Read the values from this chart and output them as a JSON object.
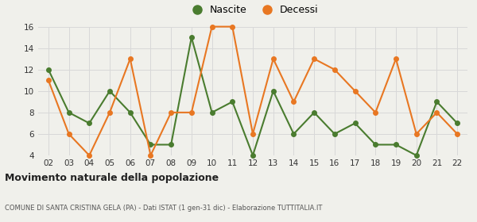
{
  "years": [
    2,
    3,
    4,
    5,
    6,
    7,
    8,
    9,
    10,
    11,
    12,
    13,
    14,
    15,
    16,
    17,
    18,
    19,
    20,
    21,
    22
  ],
  "nascite": [
    12,
    8,
    7,
    10,
    8,
    5,
    5,
    15,
    8,
    9,
    4,
    10,
    6,
    8,
    6,
    7,
    5,
    5,
    4,
    9,
    7
  ],
  "decessi": [
    11,
    6,
    4,
    8,
    13,
    4,
    8,
    8,
    16,
    16,
    6,
    13,
    9,
    13,
    12,
    10,
    8,
    13,
    6,
    8,
    6
  ],
  "nascite_color": "#4a7c2f",
  "decessi_color": "#e87722",
  "ylim": [
    4,
    16
  ],
  "yticks": [
    4,
    6,
    8,
    10,
    12,
    14,
    16
  ],
  "title": "Movimento naturale della popolazione",
  "subtitle": "COMUNE DI SANTA CRISTINA GELA (PA) - Dati ISTAT (1 gen-31 dic) - Elaborazione TUTTITALIA.IT",
  "legend_nascite": "Nascite",
  "legend_decessi": "Decessi",
  "bg_color": "#f0f0eb",
  "grid_color": "#d8d8d8"
}
